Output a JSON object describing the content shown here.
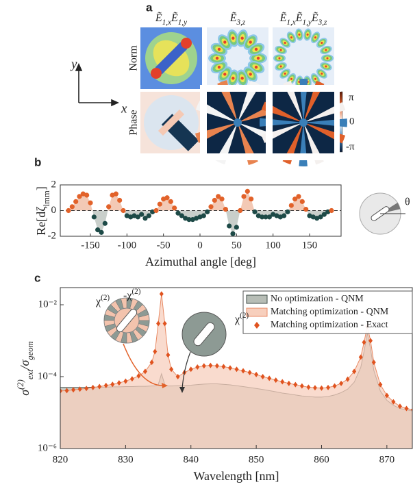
{
  "panel_labels": [
    "a",
    "b",
    "c"
  ],
  "panel_a": {
    "columns": [
      {
        "terms": [
          {
            "sym": "Ẽ",
            "sub": "1,x"
          },
          {
            "sym": "Ẽ",
            "sub": "1,y"
          }
        ]
      },
      {
        "terms": [
          {
            "sym": "Ẽ",
            "sub": "3,z"
          }
        ]
      },
      {
        "terms": [
          {
            "sym": "Ẽ",
            "sub": "1,x"
          },
          {
            "sym": "Ẽ",
            "sub": "1,y"
          },
          {
            "sym": "Ẽ",
            "sub": "3,z"
          }
        ]
      }
    ],
    "rows": [
      "Norm",
      "Phase"
    ],
    "colorbar_ticks": [
      "π",
      "0",
      "-π"
    ],
    "axes": {
      "x": "x",
      "y": "y"
    }
  },
  "chart_data": [
    {
      "type": "scatter",
      "xlabel": "Azimuthal angle [deg]",
      "ylabel": {
        "main": "Re[dζ",
        "sub": "lmm",
        "end": "]"
      },
      "inset_label": "θ",
      "x": [
        -180,
        -175,
        -170,
        -165,
        -160,
        -155,
        -150,
        -145,
        -140,
        -135,
        -130,
        -125,
        -120,
        -115,
        -110,
        -105,
        -100,
        -95,
        -90,
        -85,
        -80,
        -75,
        -70,
        -65,
        -60,
        -55,
        -50,
        -45,
        -40,
        -35,
        -30,
        -25,
        -20,
        -15,
        -10,
        -5,
        0,
        5,
        10,
        15,
        20,
        25,
        30,
        35,
        40,
        45,
        50,
        55,
        60,
        65,
        70,
        75,
        80,
        85,
        90,
        95,
        100,
        105,
        110,
        115,
        120,
        125,
        130,
        135,
        140,
        145,
        150,
        155,
        160,
        165,
        170,
        175,
        180
      ],
      "values": [
        0.0,
        0.3,
        0.7,
        1.1,
        1.3,
        1.2,
        0.6,
        -0.5,
        -1.5,
        -1.7,
        -1.0,
        0.3,
        1.2,
        1.3,
        0.8,
        0.0,
        -0.4,
        -0.5,
        -0.4,
        -0.5,
        -0.3,
        -0.6,
        -0.4,
        -0.1,
        0.0,
        0.5,
        0.9,
        1.0,
        0.7,
        0.2,
        -0.2,
        -0.4,
        -0.6,
        -0.7,
        -0.7,
        -0.6,
        -0.5,
        -0.4,
        -0.1,
        0.3,
        0.8,
        1.1,
        0.9,
        0.1,
        -1.2,
        -1.8,
        -1.3,
        0.0,
        1.1,
        1.5,
        0.9,
        -0.1,
        -0.4,
        -0.5,
        -0.5,
        -0.5,
        -0.3,
        -0.4,
        -0.5,
        -0.4,
        -0.1,
        0.4,
        0.9,
        1.1,
        0.7,
        0.1,
        -0.4,
        -0.5,
        -0.6,
        -0.5,
        -0.3,
        -0.1,
        0.0
      ],
      "positive_color": "#e2622a",
      "negative_color": "#1d4a47",
      "positive_fill": "#f3c9b5",
      "negative_fill": "#c9cfcb",
      "zero_line": true,
      "xlim": [
        -180,
        180
      ],
      "ylim": [
        -2,
        2
      ],
      "xticks": [
        -150,
        -100,
        -50,
        0,
        50,
        100,
        150
      ],
      "yticks": [
        -2,
        0,
        2
      ]
    },
    {
      "type": "line",
      "xlabel": "Wavelength [nm]",
      "ylabel": {
        "sym1": "σ",
        "sup1": "(2)",
        "sub1": "ext",
        "sep": "/",
        "sym2": "σ",
        "sub2": "geom"
      },
      "ylog": true,
      "x": [
        820,
        821,
        822,
        823,
        824,
        825,
        826,
        827,
        828,
        829,
        830,
        831,
        832,
        833,
        834,
        834.5,
        835,
        835.5,
        836,
        836.5,
        837,
        838,
        839,
        840,
        841,
        842,
        843,
        844,
        845,
        846,
        847,
        848,
        849,
        850,
        851,
        852,
        853,
        854,
        855,
        856,
        857,
        858,
        859,
        860,
        861,
        862,
        863,
        864,
        865,
        866,
        866.5,
        867,
        867.5,
        868,
        869,
        870,
        871,
        872,
        873,
        874
      ],
      "series": [
        {
          "name": "No optimization - QNM",
          "style": "area",
          "color": "#3c4a45",
          "fill": "#b7bdb6",
          "values": [
            5e-05,
            5e-05,
            5e-05,
            5e-05,
            5e-05,
            5.1e-05,
            5.1e-05,
            5.1e-05,
            5.2e-05,
            5.2e-05,
            5.3e-05,
            5.3e-05,
            5.4e-05,
            5.4e-05,
            5.5e-05,
            5.5e-05,
            6e-05,
            0.00012,
            6e-05,
            5.5e-05,
            5.5e-05,
            5.6e-05,
            5.7e-05,
            5.8e-05,
            6e-05,
            6.2e-05,
            6.3e-05,
            6.3e-05,
            6.1e-05,
            5.9e-05,
            5.6e-05,
            5.3e-05,
            5e-05,
            4.7e-05,
            4.4e-05,
            4.1e-05,
            3.8e-05,
            3.5e-05,
            3.3e-05,
            3.1e-05,
            2.9e-05,
            2.8e-05,
            2.7e-05,
            2.7e-05,
            2.8e-05,
            3.1e-05,
            3.6e-05,
            4.5e-05,
            7e-05,
            0.00018,
            0.0005,
            0.0016,
            0.0006,
            0.00015,
            4e-05,
            2.2e-05,
            1.6e-05,
            1.3e-05,
            1.2e-05,
            1.1e-05
          ]
        },
        {
          "name": "Matching optimization - QNM",
          "style": "area",
          "color": "#e88a64",
          "fill": "#f7cfbd",
          "values": [
            4e-05,
            4.1e-05,
            4.3e-05,
            4.5e-05,
            4.7e-05,
            5e-05,
            5.3e-05,
            5.7e-05,
            6.1e-05,
            6.7e-05,
            7.5e-05,
            8.7e-05,
            0.000105,
            0.00014,
            0.00025,
            0.0005,
            0.003,
            0.02,
            0.003,
            0.0004,
            0.00016,
            0.0001,
            0.00013,
            0.00016,
            0.000185,
            0.0002,
            0.000205,
            0.0002,
            0.00019,
            0.000175,
            0.00016,
            0.000145,
            0.00013,
            0.000115,
            0.0001,
            9e-05,
            8e-05,
            7.2e-05,
            6.5e-05,
            6e-05,
            5.5e-05,
            5.1e-05,
            4.9e-05,
            4.8e-05,
            5e-05,
            5.5e-05,
            6.5e-05,
            8.5e-05,
            0.00014,
            0.00035,
            0.0009,
            0.0025,
            0.001,
            0.00025,
            6e-05,
            3e-05,
            2e-05,
            1.5e-05,
            1.3e-05,
            1.2e-05
          ]
        },
        {
          "name": "Matching optimization - Exact",
          "style": "marker",
          "color": "#e0531f",
          "values": [
            4e-05,
            4.1e-05,
            4.3e-05,
            4.5e-05,
            4.7e-05,
            5e-05,
            5.3e-05,
            5.7e-05,
            6.1e-05,
            6.7e-05,
            7.5e-05,
            8.7e-05,
            0.000105,
            0.00014,
            0.00025,
            0.0005,
            0.003,
            0.02,
            0.003,
            0.0004,
            0.00016,
            0.0001,
            0.00013,
            0.00016,
            0.000185,
            0.0002,
            0.000205,
            0.0002,
            0.00019,
            0.000175,
            0.00016,
            0.000145,
            0.00013,
            0.000115,
            0.0001,
            9e-05,
            8e-05,
            7.2e-05,
            6.5e-05,
            6e-05,
            5.5e-05,
            5.1e-05,
            4.9e-05,
            4.8e-05,
            5e-05,
            5.5e-05,
            6.5e-05,
            8.5e-05,
            0.00014,
            0.00035,
            0.0009,
            0.0025,
            0.001,
            0.00025,
            6e-05,
            3e-05,
            2e-05,
            1.5e-05,
            1.3e-05,
            1.2e-05
          ]
        }
      ],
      "annotations": [
        {
          "base": "χ",
          "sup": "(2)"
        },
        {
          "base": "-χ",
          "sup": "(2)"
        },
        {
          "base": "χ",
          "sup": "(2)"
        }
      ],
      "legend": "upper right",
      "xlim": [
        820,
        874
      ],
      "ylim": [
        1e-06,
        0.03
      ],
      "xticks": [
        820,
        830,
        840,
        850,
        860,
        870
      ],
      "yticks": [
        {
          "value": 1e-06,
          "label": "10⁻⁶"
        },
        {
          "value": 0.0001,
          "label": "10⁻⁴"
        },
        {
          "value": 0.01,
          "label": "10⁻²"
        }
      ]
    }
  ]
}
